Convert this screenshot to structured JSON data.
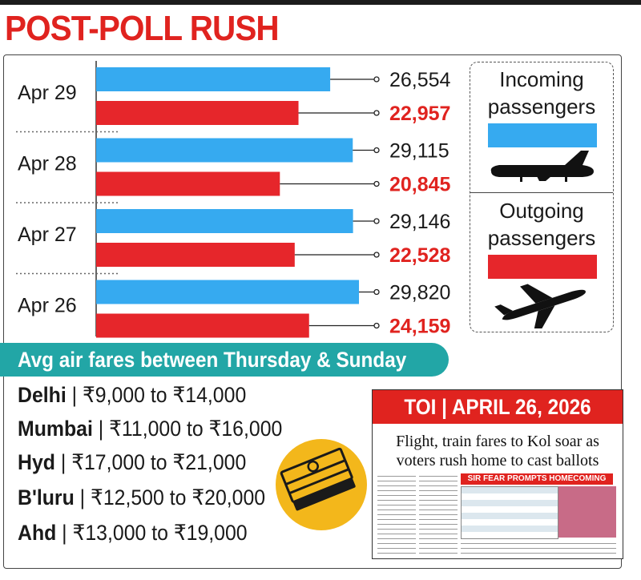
{
  "title": "POST-POLL RUSH",
  "colors": {
    "incoming": "#36aaf0",
    "outgoing": "#e6262b",
    "accent": "#e0231f",
    "teal": "#22a6a6"
  },
  "chart_data": {
    "type": "bar",
    "orientation": "horizontal",
    "categories": [
      "Apr 29",
      "Apr 28",
      "Apr 27",
      "Apr 26"
    ],
    "series": [
      {
        "name": "Incoming passengers",
        "values": [
          26554,
          29115,
          29146,
          29820
        ]
      },
      {
        "name": "Outgoing passengers",
        "values": [
          22957,
          20845,
          22528,
          24159
        ]
      }
    ],
    "labels": {
      "incoming": [
        "26,554",
        "29,115",
        "29,146",
        "29,820"
      ],
      "outgoing": [
        "22,957",
        "20,845",
        "22,528",
        "24,159"
      ]
    },
    "legend_placement": "right"
  },
  "legend": {
    "incoming_label": "Incoming passengers",
    "incoming_icon": "airplane-side-icon",
    "outgoing_label": "Outgoing passengers",
    "outgoing_icon": "airplane-takeoff-icon"
  },
  "fares": {
    "header": "Avg air fares between Thursday & Sunday",
    "icon": "money-stack-icon",
    "rows": [
      {
        "city": "Delhi",
        "range": " | ₹9,000 to ₹14,000"
      },
      {
        "city": "Mumbai",
        "range": " | ₹11,000 to ₹16,000"
      },
      {
        "city": "Hyd",
        "range": " | ₹17,000 to ₹21,000"
      },
      {
        "city": "B'luru",
        "range": " | ₹12,500 to ₹20,000"
      },
      {
        "city": "Ahd",
        "range": " | ₹13,000 to ₹19,000"
      }
    ]
  },
  "clipping": {
    "header": "TOI | APRIL 26, 2026",
    "headline_line1": "Flight, train fares to Kol soar as",
    "headline_line2": "voters rush home to cast ballots",
    "subhead": "SIR FEAR PROMPTS HOMECOMING"
  }
}
